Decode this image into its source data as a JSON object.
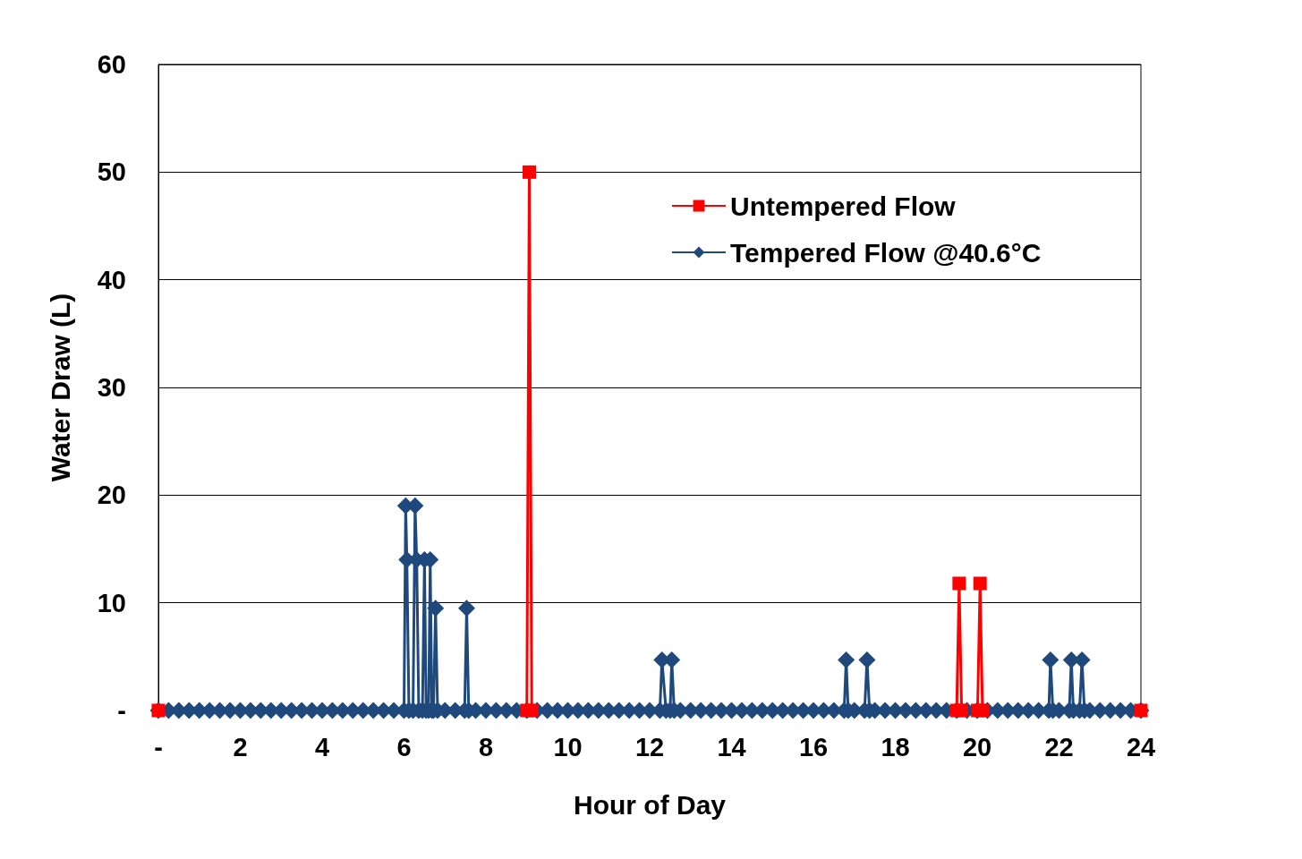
{
  "chart_data": {
    "type": "line",
    "xlabel": "Hour of Day",
    "ylabel": "Water Draw (L)",
    "xlim": [
      0,
      24
    ],
    "xticks": [
      {
        "value": 0,
        "label": "-"
      },
      2,
      4,
      6,
      8,
      10,
      12,
      14,
      16,
      18,
      20,
      22,
      24
    ],
    "ylim": [
      0,
      60
    ],
    "yticks": [
      {
        "value": 0,
        "label": "-"
      },
      10,
      20,
      30,
      40,
      50,
      60
    ],
    "grid": "y",
    "legend": "top right",
    "series": [
      {
        "name": "Untempered Flow",
        "color": "#ff0000",
        "marker": "square",
        "x": [
          0,
          0.5,
          9.0,
          9.06,
          9.12,
          9.5,
          19.5,
          19.56,
          19.62,
          19.8,
          20.01,
          20.07,
          20.13,
          20.5,
          24
        ],
        "values": [
          0,
          null,
          0,
          50,
          0,
          null,
          0,
          11.8,
          0,
          null,
          0,
          11.8,
          0,
          null,
          0
        ]
      },
      {
        "name": "Tempered Flow @40.6°C",
        "color": "#1f497d",
        "marker": "diamond",
        "x": [
          0,
          0.25,
          0.5,
          0.75,
          1,
          1.25,
          1.5,
          1.75,
          2,
          2.25,
          2.5,
          2.75,
          3,
          3.25,
          3.5,
          3.75,
          4,
          4.25,
          4.5,
          4.75,
          5,
          5.25,
          5.5,
          5.75,
          6,
          6.04,
          6.07,
          6.12,
          6.22,
          6.27,
          6.31,
          6.36,
          6.45,
          6.5,
          6.54,
          6.6,
          6.64,
          6.68,
          6.72,
          6.77,
          6.82,
          7,
          7.25,
          7.48,
          7.53,
          7.58,
          7.75,
          8,
          8.25,
          8.5,
          8.75,
          9,
          9.25,
          9.5,
          9.75,
          10,
          10.25,
          10.5,
          10.75,
          11,
          11.25,
          11.5,
          11.75,
          12,
          12.25,
          12.3,
          12.4,
          12.5,
          12.54,
          12.6,
          12.75,
          13,
          13.25,
          13.5,
          13.75,
          14,
          14.25,
          14.5,
          14.75,
          15,
          15.25,
          15.5,
          15.75,
          16,
          16.25,
          16.5,
          16.75,
          16.8,
          16.85,
          17,
          17.25,
          17.31,
          17.37,
          17.5,
          17.75,
          18,
          18.25,
          18.5,
          18.75,
          19,
          19.25,
          19.5,
          19.75,
          20,
          20.25,
          20.5,
          20.75,
          21,
          21.25,
          21.5,
          21.75,
          21.79,
          21.85,
          22,
          22.25,
          22.3,
          22.35,
          22.5,
          22.56,
          22.62,
          22.75,
          23,
          23.25,
          23.5,
          23.75,
          24
        ],
        "values": [
          0,
          0,
          0,
          0,
          0,
          0,
          0,
          0,
          0,
          0,
          0,
          0,
          0,
          0,
          0,
          0,
          0,
          0,
          0,
          0,
          0,
          0,
          0,
          0,
          0,
          19,
          14,
          0,
          0,
          19,
          14,
          0,
          0,
          14,
          0,
          0,
          14,
          0,
          0,
          9.5,
          0,
          0,
          0,
          0,
          9.5,
          0,
          0,
          0,
          0,
          0,
          0,
          0,
          0,
          0,
          0,
          0,
          0,
          0,
          0,
          0,
          0,
          0,
          0,
          0,
          0,
          4.7,
          0,
          0,
          4.7,
          0,
          0,
          0,
          0,
          0,
          0,
          0,
          0,
          0,
          0,
          0,
          0,
          0,
          0,
          0,
          0,
          0,
          0,
          4.7,
          0,
          0,
          0,
          4.7,
          0,
          0,
          0,
          0,
          0,
          0,
          0,
          0,
          0,
          0,
          0,
          0,
          0,
          0,
          0,
          0,
          0,
          0,
          0,
          4.7,
          0,
          0,
          0,
          4.7,
          0,
          0,
          4.7,
          0,
          0,
          0,
          0,
          0,
          0,
          0
        ]
      }
    ]
  }
}
